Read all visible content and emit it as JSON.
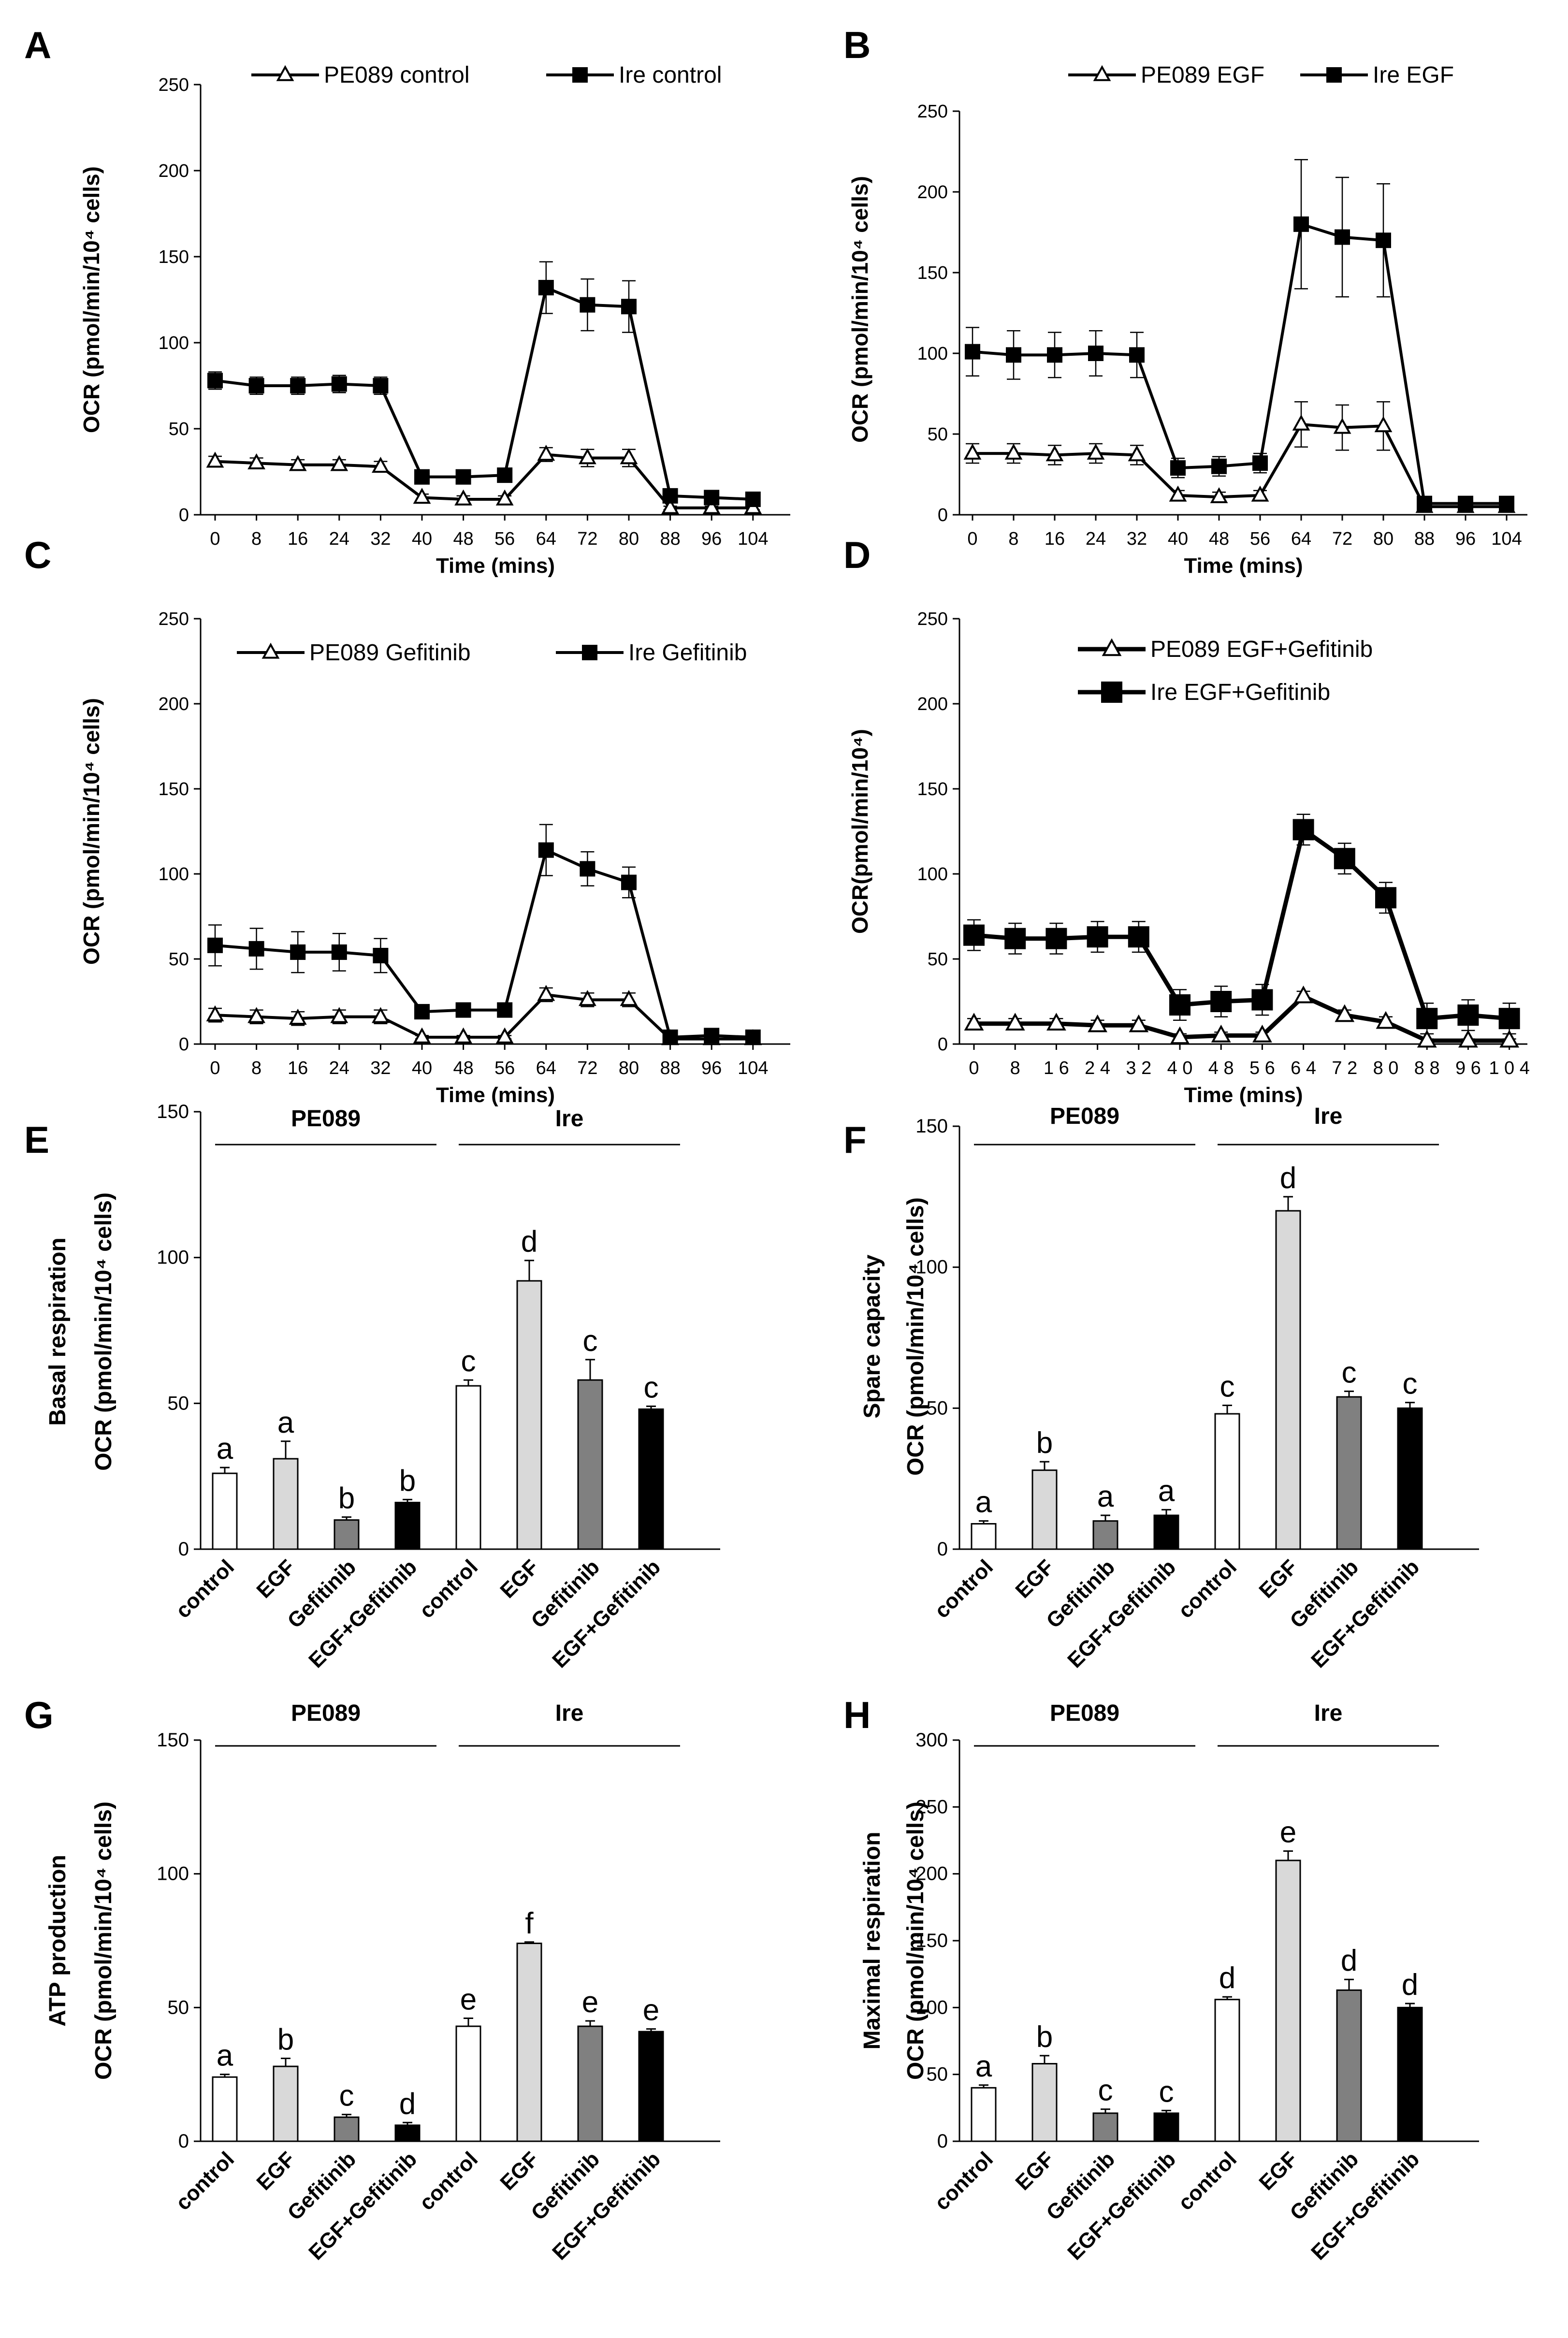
{
  "figure": {
    "time_label": "Time (mins)",
    "time_ticks": [
      "0",
      "8",
      "16",
      "24",
      "32",
      "40",
      "48",
      "56",
      "64",
      "72",
      "80",
      "88",
      "96",
      "104"
    ],
    "bar_categories": [
      "control",
      "EGF",
      "Gefitinib",
      "EGF+Gefitinib",
      "control",
      "EGF",
      "Gefitinib",
      "EGF+Gefitinib"
    ],
    "group_labels": [
      "PE089",
      "Ire"
    ]
  },
  "chart_data": [
    {
      "panel": "A",
      "type": "line",
      "ylabel": "OCR (pmol/min/10⁴ cells)",
      "xlabel": "Time (mins)",
      "ylim": [
        0,
        250
      ],
      "yticks": [
        0,
        50,
        100,
        150,
        200,
        250
      ],
      "x": [
        0,
        8,
        16,
        24,
        32,
        40,
        48,
        56,
        64,
        72,
        80,
        88,
        96,
        104
      ],
      "series": [
        {
          "name": "PE089 control",
          "marker": "triangle",
          "values": [
            31,
            30,
            29,
            29,
            28,
            10,
            9,
            9,
            35,
            33,
            33,
            4,
            4,
            4
          ],
          "errors": [
            3,
            3,
            3,
            3,
            3,
            2,
            2,
            2,
            4,
            5,
            5,
            1,
            1,
            1
          ]
        },
        {
          "name": "Ire control",
          "marker": "square",
          "values": [
            78,
            75,
            75,
            76,
            75,
            22,
            22,
            23,
            132,
            122,
            121,
            11,
            10,
            9
          ],
          "errors": [
            5,
            5,
            5,
            5,
            5,
            3,
            3,
            3,
            15,
            15,
            15,
            2,
            2,
            2
          ]
        }
      ]
    },
    {
      "panel": "B",
      "type": "line",
      "ylabel": "OCR (pmol/min/10⁴ cells)",
      "xlabel": "Time (mins)",
      "ylim": [
        0,
        250
      ],
      "yticks": [
        0,
        50,
        100,
        150,
        200,
        250
      ],
      "x": [
        0,
        8,
        16,
        24,
        32,
        40,
        48,
        56,
        64,
        72,
        80,
        88,
        96,
        104
      ],
      "series": [
        {
          "name": "PE089 EGF",
          "marker": "triangle",
          "values": [
            38,
            38,
            37,
            38,
            37,
            12,
            11,
            12,
            56,
            54,
            55,
            5,
            5,
            5
          ],
          "errors": [
            6,
            6,
            6,
            6,
            6,
            3,
            3,
            3,
            14,
            14,
            15,
            2,
            2,
            2
          ]
        },
        {
          "name": "Ire EGF",
          "marker": "square",
          "values": [
            101,
            99,
            99,
            100,
            99,
            29,
            30,
            32,
            180,
            172,
            170,
            7,
            7,
            7
          ],
          "errors": [
            15,
            15,
            14,
            14,
            14,
            6,
            6,
            6,
            40,
            37,
            35,
            3,
            3,
            3
          ]
        }
      ]
    },
    {
      "panel": "C",
      "type": "line",
      "ylabel": "OCR (pmol/min/10⁴ cells)",
      "xlabel": "Time (mins)",
      "ylim": [
        0,
        250
      ],
      "yticks": [
        0,
        50,
        100,
        150,
        200,
        250
      ],
      "x": [
        0,
        8,
        16,
        24,
        32,
        40,
        48,
        56,
        64,
        72,
        80,
        88,
        96,
        104
      ],
      "series": [
        {
          "name": "PE089 Gefitinib",
          "marker": "triangle",
          "values": [
            17,
            16,
            15,
            16,
            16,
            4,
            4,
            4,
            29,
            26,
            26,
            3,
            3,
            3
          ],
          "errors": [
            4,
            4,
            4,
            4,
            4,
            1,
            1,
            1,
            4,
            4,
            4,
            1,
            1,
            1
          ]
        },
        {
          "name": "Ire Gefitinib",
          "marker": "square",
          "values": [
            58,
            56,
            54,
            54,
            52,
            19,
            20,
            20,
            114,
            103,
            95,
            4,
            5,
            4
          ],
          "errors": [
            12,
            12,
            12,
            11,
            10,
            2,
            2,
            2,
            15,
            10,
            9,
            1,
            1,
            1
          ]
        }
      ]
    },
    {
      "panel": "D",
      "type": "line",
      "ylabel": "OCR(pmol/min/10⁴)",
      "xlabel": "Time (mins)",
      "xticklabels": [
        "0",
        "8",
        "1 6",
        "2 4",
        "3 2",
        "4 0",
        "4 8",
        "5 6",
        "6 4",
        "7 2",
        "8 0",
        "8 8",
        "9 6",
        "1 0 4"
      ],
      "ylim": [
        0,
        250
      ],
      "yticks": [
        0,
        50,
        100,
        150,
        200,
        250
      ],
      "x": [
        0,
        8,
        16,
        24,
        32,
        40,
        48,
        56,
        64,
        72,
        80,
        88,
        96,
        104
      ],
      "series": [
        {
          "name": "PE089 EGF+Gefitinib",
          "marker": "triangle",
          "values": [
            12,
            12,
            12,
            11,
            11,
            4,
            5,
            5,
            28,
            17,
            13,
            2,
            2,
            2
          ],
          "errors": [
            3,
            3,
            3,
            3,
            3,
            2,
            2,
            2,
            3,
            3,
            3,
            1,
            1,
            1
          ]
        },
        {
          "name": "Ire EGF+Gefitinib",
          "marker": "square",
          "values": [
            64,
            62,
            62,
            63,
            63,
            23,
            25,
            26,
            126,
            109,
            86,
            15,
            17,
            15
          ],
          "errors": [
            9,
            9,
            9,
            9,
            9,
            9,
            9,
            9,
            9,
            9,
            9,
            9,
            9,
            9
          ]
        }
      ]
    },
    {
      "panel": "E",
      "type": "bar",
      "ylabel": [
        "Basal respiration",
        "OCR (pmol/min/10⁴ cells)"
      ],
      "ylim": [
        0,
        150
      ],
      "yticks": [
        0,
        50,
        100,
        150
      ],
      "categories": [
        "control",
        "EGF",
        "Gefitinib",
        "EGF+Gefitinib",
        "control",
        "EGF",
        "Gefitinib",
        "EGF+Gefitinib"
      ],
      "groups": [
        "PE089",
        "Ire"
      ],
      "values": [
        26,
        31,
        10,
        16,
        56,
        92,
        58,
        48
      ],
      "errors": [
        2,
        6,
        1,
        1,
        2,
        7,
        7,
        1
      ],
      "letters": [
        "a",
        "a",
        "b",
        "b",
        "c",
        "d",
        "c",
        "c"
      ]
    },
    {
      "panel": "F",
      "type": "bar",
      "ylabel": [
        "Spare capacity",
        "OCR (pmol/min/10⁴ cells)"
      ],
      "ylim": [
        0,
        150
      ],
      "yticks": [
        0,
        50,
        100,
        150
      ],
      "categories": [
        "control",
        "EGF",
        "Gefitinib",
        "EGF+Gefitinib",
        "control",
        "EGF",
        "Gefitinib",
        "EGF+Gefitinib"
      ],
      "groups": [
        "PE089",
        "Ire"
      ],
      "values": [
        9,
        28,
        10,
        12,
        48,
        120,
        54,
        50
      ],
      "errors": [
        1,
        3,
        2,
        2,
        3,
        5,
        2,
        2
      ],
      "letters": [
        "a",
        "b",
        "a",
        "a",
        "c",
        "d",
        "c",
        "c"
      ]
    },
    {
      "panel": "G",
      "type": "bar",
      "ylabel": [
        "ATP production",
        "OCR (pmol/min/10⁴ cells)"
      ],
      "ylim": [
        0,
        150
      ],
      "yticks": [
        0,
        50,
        100,
        150
      ],
      "categories": [
        "control",
        "EGF",
        "Gefitinib",
        "EGF+Gefitinib",
        "control",
        "EGF",
        "Gefitinib",
        "EGF+Gefitinib"
      ],
      "groups": [
        "PE089",
        "Ire"
      ],
      "values": [
        24,
        28,
        9,
        6,
        43,
        74,
        43,
        41
      ],
      "errors": [
        1,
        3,
        1,
        1,
        3,
        0.5,
        2,
        1
      ],
      "letters": [
        "a",
        "b",
        "c",
        "d",
        "e",
        "f",
        "e",
        "e"
      ]
    },
    {
      "panel": "H",
      "type": "bar",
      "ylabel": [
        "Maximal respiration",
        "OCR (pmol/min/10⁴ cells)"
      ],
      "ylim": [
        0,
        300
      ],
      "yticks": [
        0,
        50,
        100,
        150,
        200,
        250,
        300
      ],
      "categories": [
        "control",
        "EGF",
        "Gefitinib",
        "EGF+Gefitinib",
        "control",
        "EGF",
        "Gefitinib",
        "EGF+Gefitinib"
      ],
      "groups": [
        "PE089",
        "Ire"
      ],
      "values": [
        40,
        58,
        21,
        21,
        106,
        210,
        113,
        100
      ],
      "errors": [
        2,
        6,
        3,
        2,
        2,
        7,
        8,
        3
      ],
      "letters": [
        "a",
        "b",
        "c",
        "c",
        "d",
        "e",
        "d",
        "d"
      ]
    }
  ]
}
